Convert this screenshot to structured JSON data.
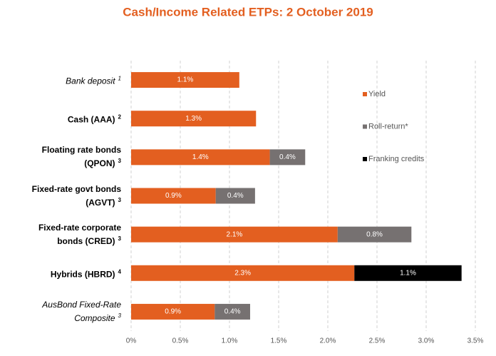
{
  "chart_data": {
    "type": "stacked-bar-horizontal",
    "title": "Cash/Income Related ETPs: 2 October 2019",
    "categories": [
      "Bank deposit",
      "Cash (AAA)",
      "Floating rate bonds (QPON)",
      "Fixed-rate govt bonds (AGVT)",
      "Fixed-rate corporate bonds (CRED)",
      "Hybrids (HBRD)",
      "AusBond Fixed-Rate Composite"
    ],
    "category_notes": [
      "1",
      "2",
      "3",
      "3",
      "3",
      "4",
      "3"
    ],
    "series": [
      {
        "name": "Yield",
        "color": "#e35f20",
        "values": [
          1.1,
          1.27,
          1.41,
          0.86,
          2.1,
          2.27,
          0.85
        ],
        "value_labels": [
          "1.1%",
          "1.3%",
          "1.4%",
          "0.9%",
          "2.1%",
          "2.3%",
          "0.9%"
        ]
      },
      {
        "name": "Roll-return*",
        "color": "#767171",
        "values": [
          null,
          null,
          0.36,
          0.4,
          0.75,
          null,
          0.36
        ],
        "value_labels": [
          null,
          null,
          "0.4%",
          "0.4%",
          "0.8%",
          null,
          "0.4%"
        ]
      },
      {
        "name": "Franking credits",
        "color": "#000000",
        "values": [
          null,
          null,
          null,
          null,
          null,
          1.09,
          null
        ],
        "value_labels": [
          null,
          null,
          null,
          null,
          null,
          "1.1%",
          null
        ]
      }
    ],
    "xlim": [
      0,
      3.5
    ],
    "xticks": [
      {
        "value": 0,
        "label": "0%"
      },
      {
        "value": 0.5,
        "label": "0.5%"
      },
      {
        "value": 1,
        "label": "1.0%"
      },
      {
        "value": 1.5,
        "label": "1.5%"
      },
      {
        "value": 2,
        "label": "2.0%"
      },
      {
        "value": 2.5,
        "label": "2.5%"
      },
      {
        "value": 3,
        "label": "3.0%"
      },
      {
        "value": 3.5,
        "label": "3.5%"
      }
    ],
    "grid": true,
    "legend": "right"
  }
}
